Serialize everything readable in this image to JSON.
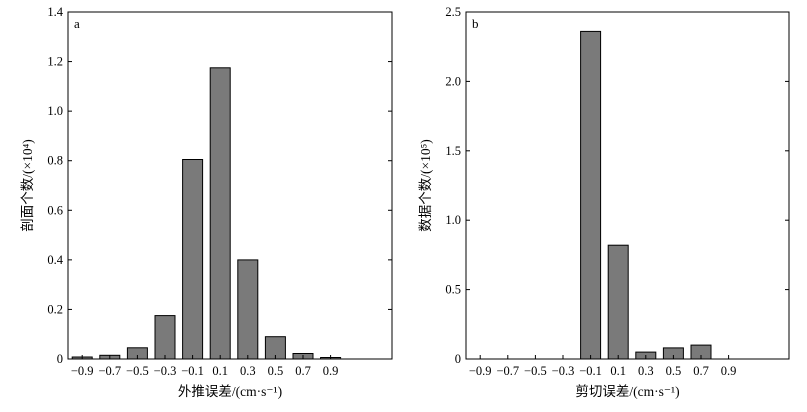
{
  "chart_data": [
    {
      "type": "bar",
      "panel_label": "a",
      "categories": [
        "−0.9",
        "−0.7",
        "−0.5",
        "−0.3",
        "−0.1",
        "0.1",
        "0.3",
        "0.5",
        "0.7",
        "0.9"
      ],
      "values": [
        0.008,
        0.015,
        0.045,
        0.175,
        0.805,
        1.175,
        0.4,
        0.09,
        0.022,
        0.006
      ],
      "xlabel": "外推误差/(cm·s⁻¹)",
      "ylabel": "剖面个数/(×10⁴)",
      "ylim": [
        0,
        1.4
      ],
      "yticks": [
        "0",
        "0.2",
        "0.4",
        "0.6",
        "0.8",
        "1.0",
        "1.2",
        "1.4"
      ],
      "bar_color": "#7a7a7a",
      "grid": false
    },
    {
      "type": "bar",
      "panel_label": "b",
      "categories": [
        "−0.9",
        "−0.7",
        "−0.5",
        "−0.3",
        "−0.1",
        "0.1",
        "0.3",
        "0.5",
        "0.7",
        "0.9"
      ],
      "values": [
        0,
        0,
        0,
        0,
        2.36,
        0.82,
        0.05,
        0.08,
        0.1,
        0
      ],
      "xlabel": "剪切误差/(cm·s⁻¹)",
      "ylabel": "数据个数/(×10⁵)",
      "ylim": [
        0,
        2.5
      ],
      "yticks": [
        "0",
        "0.5",
        "1.0",
        "1.5",
        "2.0",
        "2.5"
      ],
      "bar_color": "#7a7a7a",
      "grid": false
    }
  ]
}
